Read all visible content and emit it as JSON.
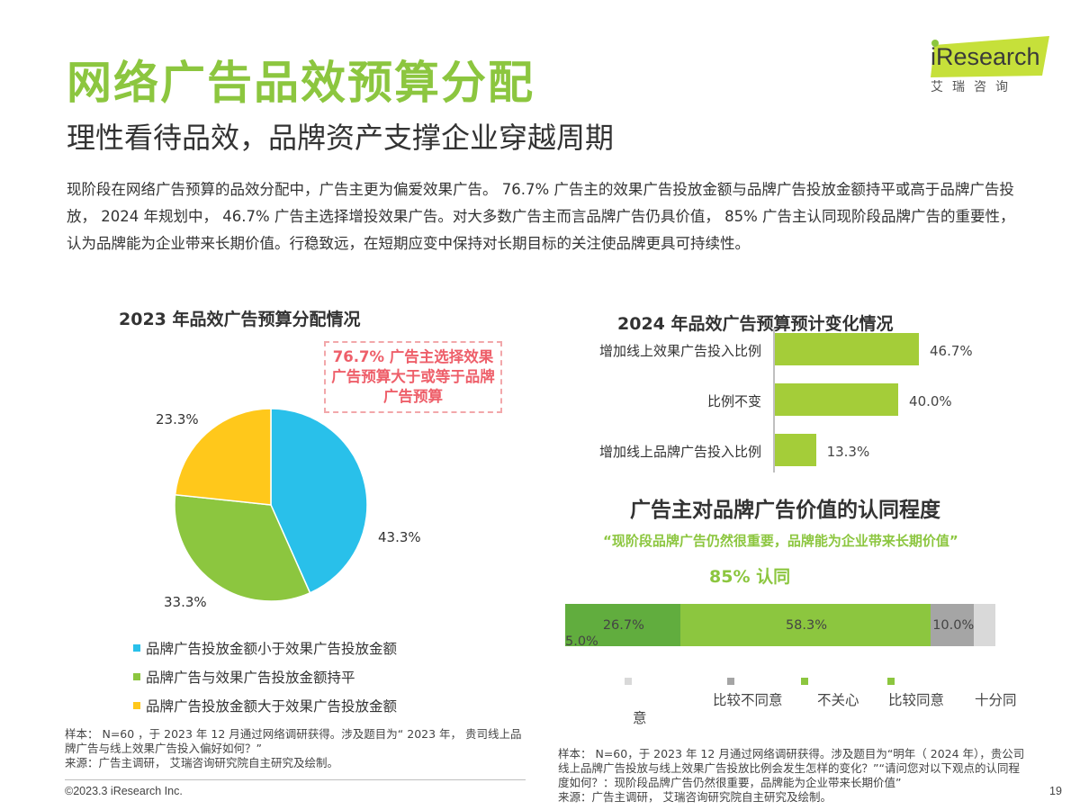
{
  "header": {
    "title": "网络广告品效预算分配",
    "subtitle": "理性看待品效，品牌资产支撑企业穿越周期",
    "body": "现阶段在网络广告预算的品效分配中，广告主更为偏爱效果广告。 76.7% 广告主的效果广告投放金额与品牌广告投放金额持平或高于品牌广告投放， 2024 年规划中， 46.7% 广告主选择增投效果广告。对大多数广告主而言品牌广告仍具价值， 85% 广告主认同现阶段品牌广告的重要性，认为品牌能为企业带来长期价值。行稳致远，在短期应变中保持对长期目标的关注使品牌更具可持续性。"
  },
  "logo": {
    "word": "iResearch",
    "sub": "艾瑞咨询"
  },
  "colors": {
    "title_green": "#8cc63f",
    "cyan": "#29c0ea",
    "green": "#8cc63f",
    "yellow": "#ffc81b",
    "bar_green": "#a4cd39",
    "dark_green": "#61ad3e",
    "gray": "#a5a5a5",
    "light_gray": "#d9d9d9",
    "callout_red": "#ee5f6a"
  },
  "chart_data": [
    {
      "type": "pie",
      "title": "2023 年品效广告预算分配情况",
      "categories": [
        "品牌广告投放金额小于效果广告投放金额",
        "品牌广告与效果广告投放金额持平",
        "品牌广告投放金额大于效果广告投放金额"
      ],
      "values": [
        43.3,
        33.3,
        23.3
      ],
      "labels": [
        "43.3%",
        "33.3%",
        "23.3%"
      ],
      "colors": [
        "#29c0ea",
        "#8cc63f",
        "#ffc81b"
      ],
      "legend": "bottom",
      "annotation": "76.7% 广告主选择效果广告预算大于或等于品牌广告预算"
    },
    {
      "type": "bar",
      "orientation": "horizontal",
      "title": "2024 年品效广告预算预计变化情况",
      "categories": [
        "增加线上效果广告投入比例",
        "比例不变",
        "增加线上品牌广告投入比例"
      ],
      "values": [
        46.7,
        40.0,
        13.3
      ],
      "labels": [
        "46.7%",
        "40.0%",
        "13.3%"
      ],
      "color": "#a4cd39"
    },
    {
      "type": "bar",
      "orientation": "horizontal",
      "stacked": true,
      "title": "广告主对品牌广告价值的认同程度",
      "quote": "“现阶段品牌广告仍然很重要，品牌能为企业带来长期价值”",
      "highlight": "85% 认同",
      "series": [
        {
          "name": "十分同意",
          "value": 26.7,
          "label": "26.7%",
          "color": "#61ad3e"
        },
        {
          "name": "比较同意",
          "value": 58.3,
          "label": "58.3%",
          "color": "#8cc63f"
        },
        {
          "name": "不关心",
          "value": 10.0,
          "label": "10.0%",
          "color": "#a5a5a5"
        },
        {
          "name": "比较不同意",
          "value": 5.0,
          "label": "5.0%",
          "color": "#d9d9d9"
        }
      ],
      "legend_entries": [
        "意",
        "比较不同意",
        "不关心",
        "比较同意",
        "十分同"
      ],
      "legend_colors": [
        "#d9d9d9",
        "#a5a5a5",
        "#8cc63f",
        "#8cc63f",
        "#61ad3e"
      ]
    }
  ],
  "notes": {
    "left": "样本： N=60 ，于 2023 年 12 月通过网络调研获得。涉及题目为“ 2023 年， 贵司线上品牌广告与线上效果广告投入偏好如何？”\n来源：广告主调研， 艾瑞咨询研究院自主研究及绘制。",
    "right": "样本： N=60，于 2023 年 12 月通过网络调研获得。涉及题目为“明年（ 2024 年），贵公司线上品牌广告投放与线上效果广告投放比例会发生怎样的变化？”“请问您对以下观点的认同程度如何？：现阶段品牌广告仍然很重要，品牌能为企业带来长期价值”\n来源：广告主调研， 艾瑞咨询研究院自主研究及绘制。"
  },
  "footer": {
    "copyright": "©2023.3 iResearch Inc.",
    "page": "19"
  }
}
